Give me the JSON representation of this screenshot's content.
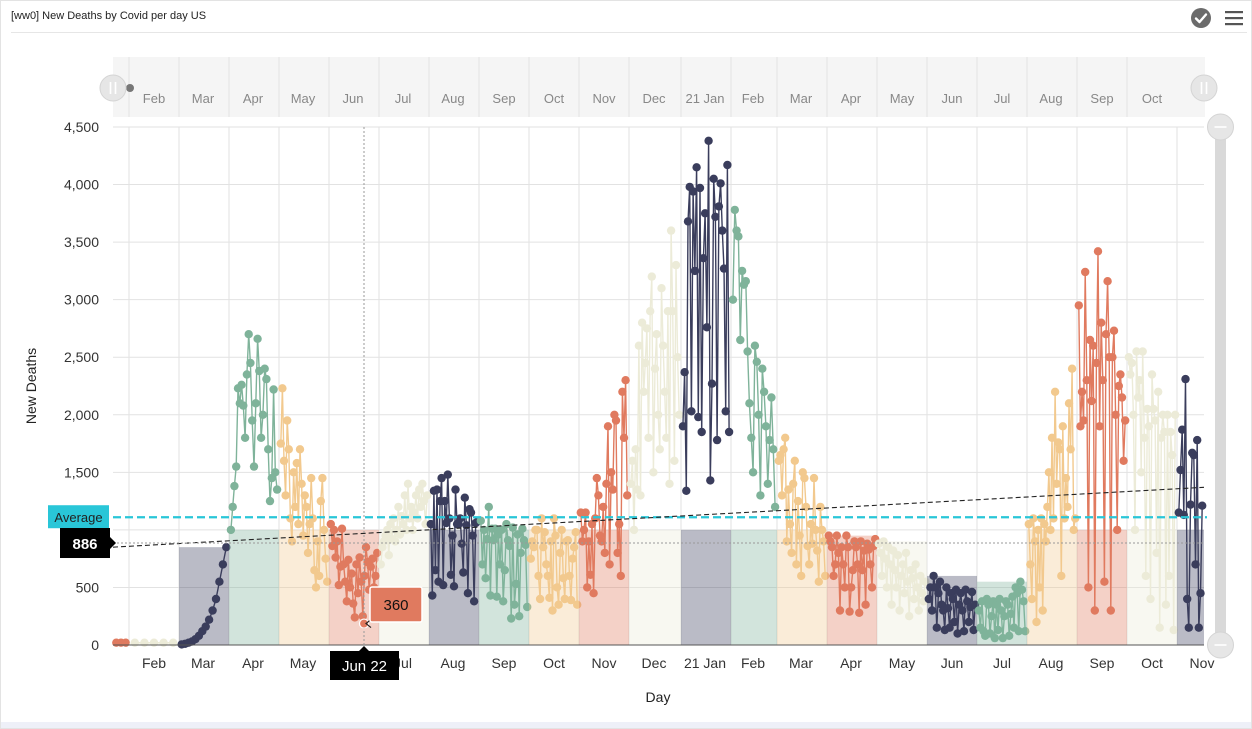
{
  "header": {
    "title": "[ww0] New Deaths by Covid per day US",
    "check_icon": "check-circle-icon",
    "menu_icon": "hamburger-menu-icon"
  },
  "colors": {
    "dark": "#3a3d5c",
    "green": "#7fb39a",
    "orange": "#f2c98e",
    "red": "#e07a5f",
    "cream": "#ecebd8",
    "average_line": "#29c6d8",
    "tooltip_label": "#e07a5f"
  },
  "navigator": {
    "months": [
      "Feb",
      "Mar",
      "Apr",
      "May",
      "Jun",
      "Jul",
      "Aug",
      "Sep",
      "Oct",
      "Nov",
      "Dec",
      "21 Jan",
      "Feb",
      "Mar",
      "Apr",
      "May",
      "Jun",
      "Jul",
      "Aug",
      "Sep",
      "Oct"
    ]
  },
  "chart_data": {
    "type": "line",
    "ylabel": "New Deaths",
    "xlabel": "Day",
    "ylim": [
      0,
      4500
    ],
    "yticks": [
      "0",
      "500",
      "1,000",
      "1,500",
      "2,000",
      "2,500",
      "3,000",
      "3,500",
      "4,000",
      "4,500"
    ],
    "x_tick_labels": [
      "Feb",
      "Mar",
      "Apr",
      "May",
      "Jun",
      "Jul",
      "Aug",
      "Sep",
      "Oct",
      "Nov",
      "Dec",
      "21 Jan",
      "Feb",
      "Mar",
      "Apr",
      "May",
      "Jun",
      "Jul",
      "Aug",
      "Sep",
      "Oct",
      "Nov"
    ],
    "grid": true,
    "average": {
      "label": "Average",
      "value": 1110
    },
    "trend": {
      "start": 850,
      "end": 1370,
      "label": "886"
    },
    "tooltip": {
      "date": "Jun 22",
      "value": "360"
    },
    "series": [
      {
        "month_index": 0,
        "color": "red",
        "values": [
          20,
          20,
          20
        ]
      },
      {
        "month_index": 1,
        "color": "cream",
        "values": [
          20,
          20,
          20,
          20,
          20
        ]
      },
      {
        "month_index": 2,
        "color": "dark",
        "values": [
          5,
          10,
          20,
          30,
          50,
          80,
          120,
          160,
          220,
          300,
          400,
          550,
          700,
          850
        ]
      },
      {
        "month_index": 3,
        "color": "green",
        "values": [
          1000,
          1200,
          1380,
          1550,
          2230,
          2100,
          2260,
          2080,
          1800,
          2350,
          2700,
          2450,
          1950,
          1550,
          2100,
          2660,
          2380,
          1800,
          2000,
          2400,
          2310,
          1700,
          1250,
          1450,
          2220,
          1500,
          1350
        ]
      },
      {
        "month_index": 4,
        "color": "orange",
        "values": [
          1750,
          2230,
          1600,
          1300,
          1950,
          1700,
          1100,
          900,
          1500,
          1200,
          1580,
          1050,
          1700,
          1400,
          950,
          1300,
          1200,
          800,
          1050,
          1450,
          1100,
          650,
          500,
          900,
          600,
          1250,
          1450,
          1000,
          750,
          550
        ]
      },
      {
        "month_index": 5,
        "color": "red",
        "values": [
          1050,
          860,
          1000,
          760,
          900,
          520,
          680,
          1010,
          700,
          550,
          380,
          740,
          500,
          620,
          360,
          240,
          700,
          450,
          760,
          550,
          250,
          600,
          850,
          720,
          480,
          680,
          750,
          500,
          600,
          800
        ]
      },
      {
        "month_index": 6,
        "color": "cream",
        "values": [
          700,
          850,
          900,
          950,
          1000,
          780,
          1050,
          920,
          1100,
          900,
          1000,
          1200,
          960,
          1120,
          1050,
          1300,
          1000,
          1400,
          1100,
          1200,
          1000,
          1150,
          1300,
          1100,
          1350,
          1200,
          1400,
          1250,
          1050,
          1300
        ]
      },
      {
        "month_index": 7,
        "color": "dark",
        "values": [
          1050,
          430,
          1340,
          650,
          1350,
          550,
          1250,
          1450,
          520,
          1250,
          1060,
          1480,
          1100,
          610,
          950,
          510,
          1350,
          1050,
          1050,
          1100,
          880,
          630,
          1280,
          1040,
          450,
          1180,
          1150,
          950,
          380,
          1060,
          1070
        ]
      },
      {
        "month_index": 8,
        "color": "green",
        "values": [
          1080,
          700,
          1000,
          580,
          920,
          1200,
          430,
          1010,
          910,
          1010,
          420,
          960,
          700,
          1000,
          380,
          650,
          1050,
          910,
          860,
          230,
          1020,
          350,
          530,
          960,
          250,
          800,
          1010,
          910,
          870,
          330
        ]
      },
      {
        "month_index": 9,
        "color": "orange",
        "values": [
          750,
          900,
          850,
          1000,
          1000,
          600,
          400,
          1100,
          850,
          980,
          700,
          600,
          410,
          900,
          300,
          1100,
          950,
          500,
          350,
          800,
          1000,
          580,
          400,
          900,
          910,
          600,
          390,
          750,
          850,
          980,
          350
        ]
      },
      {
        "month_index": 10,
        "color": "red",
        "values": [
          1150,
          900,
          1000,
          1150,
          500,
          900,
          610,
          1050,
          450,
          1100,
          1450,
          1300,
          950,
          900,
          1200,
          800,
          1400,
          1900,
          700,
          1500,
          1350,
          2000,
          1950,
          800,
          1050,
          600,
          2200,
          1800,
          2300,
          1300
        ]
      },
      {
        "month_index": 11,
        "color": "cream",
        "values": [
          1400,
          1600,
          1000,
          1700,
          1350,
          2600,
          1300,
          2800,
          2200,
          2450,
          2750,
          1800,
          2900,
          3200,
          1500,
          2400,
          2700,
          2000,
          1700,
          3100,
          2600,
          2200,
          1800,
          2900,
          1400,
          3600,
          2900,
          1600,
          3300,
          2500,
          2000
        ]
      },
      {
        "month_index": 12,
        "color": "dark",
        "values": [
          1900,
          2370,
          1340,
          3680,
          3980,
          2030,
          3940,
          3250,
          4150,
          1980,
          3970,
          1850,
          3360,
          3750,
          2760,
          4380,
          1430,
          2270,
          4050,
          3720,
          1780,
          3810,
          4010,
          3600,
          3270,
          2030,
          4170,
          1850
        ]
      },
      {
        "month_index": 13,
        "color": "green",
        "values": [
          3000,
          3780,
          3600,
          3550,
          2650,
          3250,
          3130,
          3160,
          2550,
          2100,
          1800,
          1500,
          2600,
          2460,
          2000,
          1300,
          2400,
          2200,
          1900,
          1400,
          1780,
          2150,
          1700,
          1200
        ]
      },
      {
        "month_index": 14,
        "color": "orange",
        "values": [
          1600,
          1650,
          1300,
          1700,
          1800,
          900,
          1350,
          1050,
          800,
          1400,
          1600,
          700,
          1250,
          950,
          600,
          1500,
          1450,
          1200,
          860,
          700,
          1050,
          880,
          1450,
          1000,
          820,
          550,
          1200,
          1000,
          900,
          600
        ]
      },
      {
        "month_index": 15,
        "color": "red",
        "values": [
          950,
          900,
          850,
          600,
          700,
          950,
          800,
          300,
          850,
          700,
          500,
          950,
          850,
          290,
          500,
          650,
          900,
          850,
          700,
          280,
          900,
          650,
          820,
          350,
          880,
          830,
          700,
          500,
          860,
          920
        ]
      },
      {
        "month_index": 16,
        "color": "cream",
        "values": [
          880,
          800,
          600,
          900,
          750,
          500,
          850,
          700,
          350,
          820,
          650,
          500,
          780,
          300,
          600,
          700,
          450,
          800,
          550,
          250,
          650,
          580,
          400,
          700,
          500,
          300,
          600,
          450,
          380,
          550
        ]
      },
      {
        "month_index": 17,
        "color": "dark",
        "values": [
          400,
          500,
          300,
          600,
          500,
          150,
          450,
          550,
          350,
          300,
          130,
          500,
          320,
          150,
          450,
          400,
          200,
          480,
          100,
          350,
          450,
          300,
          120,
          480,
          380,
          200,
          330,
          460,
          130,
          350
        ]
      },
      {
        "month_index": 18,
        "color": "green",
        "values": [
          300,
          150,
          380,
          120,
          80,
          400,
          350,
          100,
          250,
          380,
          60,
          350,
          130,
          400,
          300,
          60,
          250,
          380,
          350,
          80,
          270,
          420,
          150,
          500,
          450,
          120,
          550,
          480,
          380,
          120
        ]
      },
      {
        "month_index": 19,
        "color": "orange",
        "values": [
          1050,
          700,
          400,
          1100,
          900,
          200,
          1000,
          500,
          1100,
          300,
          1050,
          900,
          1200,
          1500,
          1000,
          1800,
          1100,
          2200,
          1400,
          1760,
          1700,
          600,
          1900,
          1100,
          1450,
          1200,
          2100,
          1700,
          2400,
          1000,
          1100
        ]
      },
      {
        "month_index": 20,
        "color": "red",
        "values": [
          2950,
          1900,
          2200,
          1950,
          3240,
          2300,
          500,
          2650,
          2120,
          2600,
          300,
          2450,
          3420,
          1900,
          2800,
          2300,
          550,
          2700,
          3160,
          2500,
          300,
          2500,
          2730,
          2000,
          1000,
          2250,
          2350,
          2150,
          1600,
          1950
        ]
      },
      {
        "month_index": 21,
        "color": "cream",
        "values": [
          2500,
          2350,
          2450,
          2000,
          1000,
          2550,
          2150,
          2300,
          1500,
          2550,
          1800,
          600,
          2050,
          1900,
          400,
          2350,
          2050,
          1950,
          800,
          2200,
          150,
          1800,
          2000,
          1850,
          350,
          2000,
          600,
          1850,
          1650,
          130,
          2000
        ]
      },
      {
        "month_index": 22,
        "color": "dark",
        "values": [
          1150,
          1520,
          1870,
          1130,
          2310,
          400,
          150,
          1220,
          1670,
          1650,
          700,
          1780,
          150,
          450,
          1210
        ]
      }
    ]
  }
}
